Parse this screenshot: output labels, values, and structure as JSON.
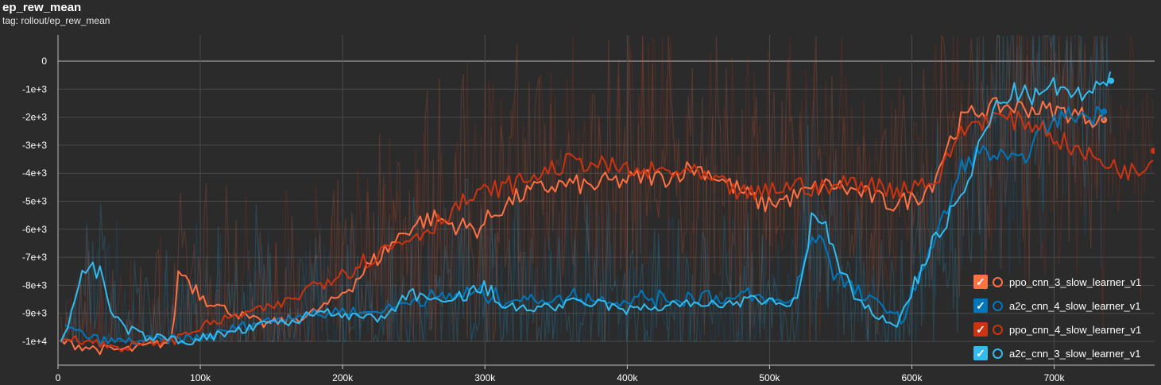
{
  "header": {
    "title": "ep_rew_mean",
    "tag": "tag: rollout/ep_rew_mean"
  },
  "legend": [
    {
      "label": "ppo_cnn_3_slow_learner_v1",
      "color": "#ff7043",
      "checked": true
    },
    {
      "label": "a2c_cnn_4_slow_learner_v1",
      "color": "#0077bb",
      "checked": true
    },
    {
      "label": "ppo_cnn_4_slow_learner_v1",
      "color": "#cc3311",
      "checked": true
    },
    {
      "label": "a2c_cnn_3_slow_learner_v1",
      "color": "#33bbee",
      "checked": true
    }
  ],
  "chart_data": {
    "type": "line",
    "title": "ep_rew_mean",
    "xlim": [
      0,
      780000
    ],
    "ylim": [
      -10800,
      900
    ],
    "x_ticks": [
      0,
      100000,
      200000,
      300000,
      400000,
      500000,
      600000,
      700000
    ],
    "x_tick_labels": [
      "0",
      "100k",
      "200k",
      "300k",
      "400k",
      "500k",
      "600k",
      "700k"
    ],
    "y_ticks": [
      0,
      -1000,
      -2000,
      -3000,
      -4000,
      -5000,
      -6000,
      -7000,
      -8000,
      -9000,
      -10000
    ],
    "y_tick_labels": [
      "0",
      "-1e+3",
      "-2e+3",
      "-3e+3",
      "-4e+3",
      "-5e+3",
      "-6e+3",
      "-7e+3",
      "-8e+3",
      "-9e+3",
      "-1e+4"
    ],
    "grid": true,
    "legend_position": "bottom-right",
    "series": [
      {
        "name": "ppo_cnn_3_slow_learner_v1",
        "color": "#ff7043",
        "x": [
          2000,
          10000,
          20000,
          30000,
          40000,
          50000,
          60000,
          70000,
          80000,
          85000,
          95000,
          105000,
          115000,
          125000,
          135000,
          145000,
          155000,
          165000,
          175000,
          185000,
          195000,
          205000,
          215000,
          225000,
          235000,
          245000,
          255000,
          265000,
          275000,
          285000,
          295000,
          305000,
          315000,
          325000,
          335000,
          345000,
          355000,
          365000,
          375000,
          385000,
          395000,
          405000,
          415000,
          425000,
          435000,
          445000,
          455000,
          465000,
          475000,
          485000,
          495000,
          505000,
          515000,
          525000,
          535000,
          545000,
          555000,
          565000,
          575000,
          585000,
          595000,
          605000,
          615000,
          625000,
          635000,
          645000,
          655000,
          665000,
          675000,
          685000,
          695000,
          705000,
          715000,
          725000,
          735000
        ],
        "y": [
          -10000,
          -10100,
          -10200,
          -10300,
          -10300,
          -10300,
          -10200,
          -10100,
          -10000,
          -7400,
          -8000,
          -8500,
          -8800,
          -9000,
          -9200,
          -9400,
          -9300,
          -9200,
          -9100,
          -8800,
          -8500,
          -8000,
          -7500,
          -7000,
          -6500,
          -6000,
          -5700,
          -5600,
          -5800,
          -5900,
          -6000,
          -5500,
          -5100,
          -4800,
          -4600,
          -4500,
          -4400,
          -4400,
          -4500,
          -4300,
          -4300,
          -4200,
          -4100,
          -4200,
          -4000,
          -3800,
          -3900,
          -4200,
          -4500,
          -4800,
          -5100,
          -5000,
          -4900,
          -4700,
          -4500,
          -4400,
          -4600,
          -4700,
          -4900,
          -5100,
          -5000,
          -4800,
          -4300,
          -3000,
          -2100,
          -1800,
          -1700,
          -1600,
          -1650,
          -1700,
          -1750,
          -1800,
          -1900,
          -2000,
          -2100
        ]
      },
      {
        "name": "a2c_cnn_4_slow_learner_v1",
        "color": "#0077bb",
        "x": [
          5000,
          15000,
          25000,
          35000,
          45000,
          55000,
          65000,
          75000,
          85000,
          95000,
          105000,
          115000,
          125000,
          135000,
          145000,
          155000,
          165000,
          175000,
          185000,
          195000,
          205000,
          215000,
          225000,
          235000,
          245000,
          255000,
          265000,
          275000,
          285000,
          295000,
          305000,
          315000,
          325000,
          335000,
          345000,
          355000,
          365000,
          375000,
          385000,
          395000,
          405000,
          415000,
          425000,
          435000,
          445000,
          455000,
          465000,
          475000,
          485000,
          495000,
          505000,
          515000,
          525000,
          535000,
          545000,
          555000,
          565000,
          575000,
          585000,
          595000,
          605000,
          615000,
          625000,
          635000,
          645000,
          655000,
          665000,
          675000,
          685000,
          695000,
          705000,
          715000,
          725000,
          735000
        ],
        "y": [
          -9500,
          -9700,
          -9900,
          -10000,
          -10000,
          -10000,
          -9950,
          -9950,
          -9900,
          -9900,
          -9800,
          -9700,
          -9500,
          -9400,
          -9300,
          -9200,
          -9100,
          -9000,
          -9100,
          -8900,
          -8900,
          -9000,
          -8900,
          -8800,
          -8600,
          -8400,
          -8500,
          -8400,
          -8300,
          -8300,
          -8400,
          -8500,
          -8500,
          -8500,
          -8500,
          -8500,
          -8300,
          -8500,
          -8500,
          -8600,
          -8500,
          -8400,
          -8500,
          -8500,
          -8400,
          -8300,
          -8500,
          -8500,
          -8400,
          -8500,
          -8600,
          -8600,
          -7000,
          -6000,
          -7500,
          -8000,
          -8400,
          -8600,
          -8900,
          -9300,
          -7500,
          -6500,
          -5300,
          -3800,
          -3300,
          -3300,
          -3500,
          -3700,
          -2900,
          -2300,
          -2000,
          -1900,
          -2000,
          -1800
        ]
      },
      {
        "name": "ppo_cnn_4_slow_learner_v1",
        "color": "#cc3311",
        "x": [
          2000,
          10000,
          20000,
          30000,
          40000,
          50000,
          60000,
          70000,
          80000,
          90000,
          100000,
          110000,
          120000,
          130000,
          140000,
          150000,
          160000,
          170000,
          180000,
          190000,
          200000,
          210000,
          220000,
          230000,
          240000,
          250000,
          260000,
          270000,
          280000,
          290000,
          300000,
          310000,
          320000,
          330000,
          340000,
          350000,
          360000,
          370000,
          380000,
          390000,
          400000,
          410000,
          420000,
          430000,
          440000,
          450000,
          460000,
          470000,
          480000,
          490000,
          500000,
          510000,
          520000,
          530000,
          540000,
          550000,
          560000,
          570000,
          580000,
          590000,
          600000,
          610000,
          620000,
          630000,
          640000,
          650000,
          660000,
          670000,
          680000,
          690000,
          700000,
          710000,
          720000,
          730000,
          740000,
          750000,
          760000,
          770000
        ],
        "y": [
          -10000,
          -9800,
          -10000,
          -10100,
          -10200,
          -10200,
          -10100,
          -10000,
          -10000,
          -9700,
          -9500,
          -9300,
          -9200,
          -9000,
          -8900,
          -8800,
          -8600,
          -8300,
          -8000,
          -7700,
          -7500,
          -7300,
          -7000,
          -6700,
          -6500,
          -6200,
          -6000,
          -5600,
          -5200,
          -4900,
          -4700,
          -4500,
          -4400,
          -4200,
          -4000,
          -3800,
          -3600,
          -3600,
          -3700,
          -3800,
          -3900,
          -4000,
          -3900,
          -4000,
          -3900,
          -4100,
          -4300,
          -4500,
          -4700,
          -4800,
          -4600,
          -4500,
          -4400,
          -4500,
          -4600,
          -4400,
          -4300,
          -4400,
          -4500,
          -4600,
          -4400,
          -4300,
          -4200,
          -2800,
          -2300,
          -2100,
          -2000,
          -2100,
          -2200,
          -2300,
          -2700,
          -3000,
          -3300,
          -3500,
          -3700,
          -3900,
          -4000,
          -3200
        ]
      },
      {
        "name": "a2c_cnn_3_slow_learner_v1",
        "color": "#33bbee",
        "x": [
          2000,
          10000,
          15000,
          20000,
          25000,
          30000,
          35000,
          40000,
          50000,
          60000,
          70000,
          80000,
          90000,
          100000,
          110000,
          120000,
          130000,
          140000,
          150000,
          160000,
          170000,
          180000,
          190000,
          200000,
          210000,
          220000,
          230000,
          240000,
          250000,
          260000,
          270000,
          280000,
          290000,
          300000,
          310000,
          320000,
          330000,
          340000,
          350000,
          360000,
          370000,
          380000,
          390000,
          400000,
          410000,
          420000,
          430000,
          440000,
          450000,
          460000,
          470000,
          480000,
          490000,
          500000,
          510000,
          520000,
          530000,
          540000,
          550000,
          560000,
          570000,
          580000,
          590000,
          600000,
          610000,
          620000,
          630000,
          640000,
          650000,
          660000,
          670000,
          680000,
          690000,
          700000,
          710000,
          720000,
          730000,
          740000
        ],
        "y": [
          -10000,
          -9000,
          -7800,
          -7200,
          -7400,
          -7600,
          -8600,
          -9200,
          -9600,
          -9800,
          -9900,
          -9900,
          -10000,
          -9900,
          -9800,
          -9700,
          -9600,
          -9500,
          -9300,
          -9400,
          -9200,
          -9000,
          -8900,
          -9000,
          -9200,
          -9100,
          -9300,
          -8600,
          -8200,
          -8500,
          -8700,
          -8500,
          -8300,
          -8100,
          -8600,
          -8800,
          -8900,
          -8700,
          -8800,
          -8600,
          -8700,
          -8600,
          -8800,
          -8900,
          -8800,
          -8800,
          -8700,
          -8600,
          -8800,
          -8600,
          -8700,
          -8600,
          -8500,
          -8600,
          -8700,
          -8500,
          -5500,
          -6000,
          -7500,
          -8500,
          -8900,
          -9200,
          -9400,
          -8200,
          -7000,
          -6000,
          -5300,
          -4300,
          -2600,
          -1600,
          -1100,
          -1200,
          -1300,
          -900,
          -1100,
          -1300,
          -1000,
          -700
        ]
      }
    ]
  }
}
